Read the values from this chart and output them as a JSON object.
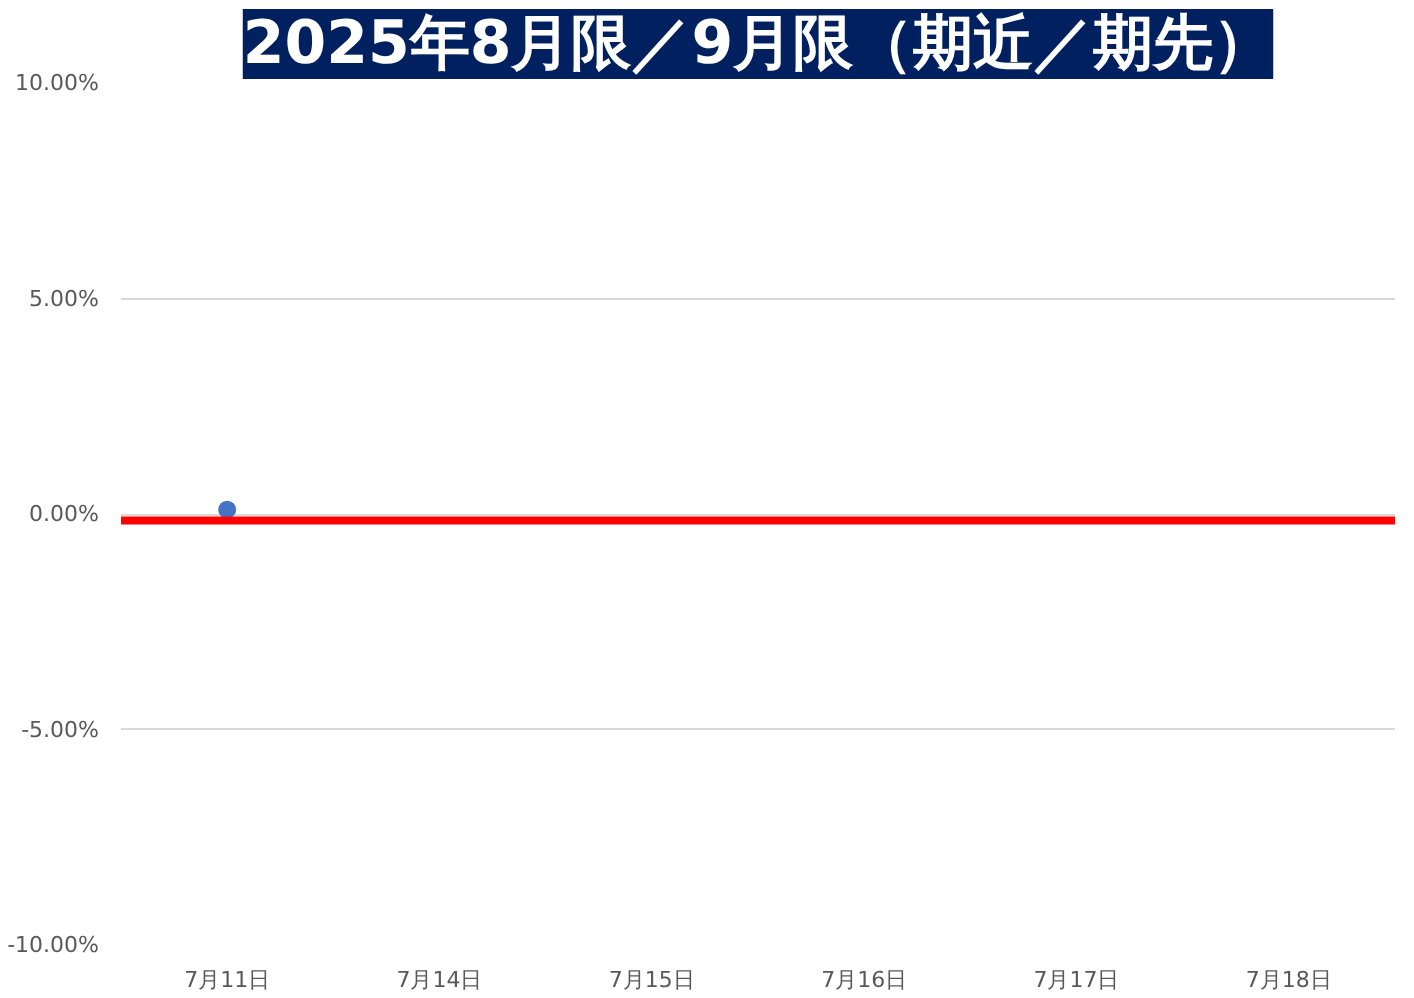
{
  "chart_data": {
    "type": "scatter",
    "title": "2025年8月限／9月限（期近／期先）",
    "categories": [
      "7月11日",
      "7月14日",
      "7月15日",
      "7月16日",
      "7月17日",
      "7月18日"
    ],
    "series": [
      {
        "color": "#4472c4",
        "values": [
          0.1,
          null,
          null,
          null,
          null,
          null
        ]
      }
    ],
    "ylim": [
      -10,
      10
    ],
    "yticks": [
      {
        "value": -10,
        "label": "-10.00%"
      },
      {
        "value": -5,
        "label": "-5.00%"
      },
      {
        "value": 0,
        "label": "0.00%"
      },
      {
        "value": 5,
        "label": "5.00%"
      },
      {
        "value": 10,
        "label": "10.00%"
      }
    ],
    "ref_lines": [
      {
        "axis": "y",
        "value": -0.15,
        "color": "#ff0000"
      }
    ],
    "grid": "y",
    "marker": "circle"
  }
}
